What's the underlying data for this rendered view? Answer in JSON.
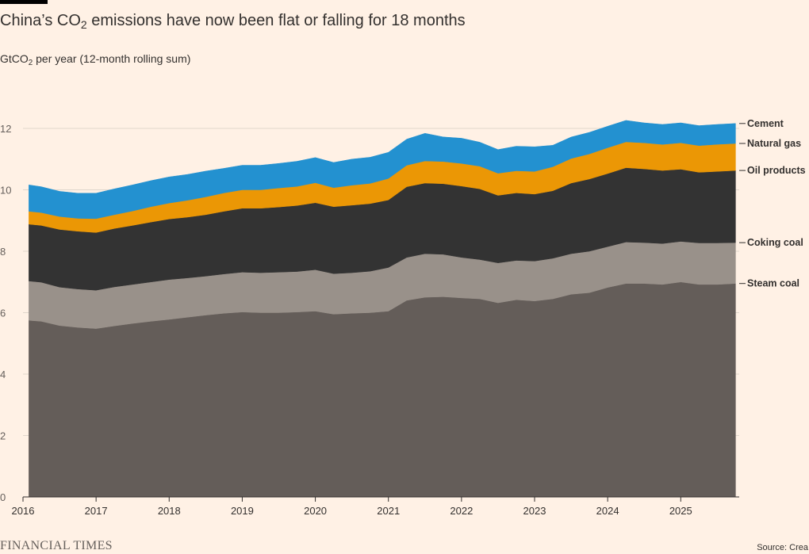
{
  "header": {
    "title_pre": "China’s CO",
    "title_sub": "2",
    "title_post": " emissions have now been flat or falling for 18 months",
    "subtitle_pre": "GtCO",
    "subtitle_sub": "2",
    "subtitle_post": " per year (12-month rolling sum)"
  },
  "footer": {
    "brand": "FINANCIAL TIMES",
    "source": "Source: Crea"
  },
  "colors": {
    "steam_coal": "#645d59",
    "coking_coal": "#99918a",
    "oil_products": "#333333",
    "natural_gas": "#eb9705",
    "cement": "#2391d0",
    "background": "#fff1e5",
    "grid": "#e0d6cc"
  },
  "chart_data": {
    "type": "area",
    "stacked": true,
    "title": "China’s CO₂ emissions have now been flat or falling for 18 months",
    "ylabel": "GtCO₂ per year (12-month rolling sum)",
    "xlabel": "",
    "xlim": [
      2016,
      2025.8
    ],
    "ylim": [
      0,
      12
    ],
    "yticks": [
      0,
      2,
      4,
      6,
      8,
      10,
      12
    ],
    "xticks": [
      2016,
      2017,
      2018,
      2019,
      2020,
      2021,
      2022,
      2023,
      2024,
      2025
    ],
    "grid": true,
    "legend": "direct labels at right end",
    "x": [
      2016.08,
      2016.25,
      2016.5,
      2016.75,
      2017.0,
      2017.25,
      2017.5,
      2017.75,
      2018.0,
      2018.25,
      2018.5,
      2018.75,
      2019.0,
      2019.25,
      2019.5,
      2019.75,
      2020.0,
      2020.25,
      2020.5,
      2020.75,
      2021.0,
      2021.25,
      2021.5,
      2021.75,
      2022.0,
      2022.25,
      2022.5,
      2022.75,
      2023.0,
      2023.25,
      2023.5,
      2023.75,
      2024.0,
      2024.25,
      2024.5,
      2024.75,
      2025.0,
      2025.25,
      2025.5,
      2025.75
    ],
    "series": [
      {
        "name": "Steam coal",
        "values": [
          5.75,
          5.72,
          5.58,
          5.52,
          5.48,
          5.57,
          5.65,
          5.72,
          5.78,
          5.85,
          5.92,
          5.98,
          6.02,
          6.0,
          6.0,
          6.02,
          6.05,
          5.95,
          5.98,
          6.0,
          6.05,
          6.4,
          6.5,
          6.52,
          6.48,
          6.45,
          6.32,
          6.42,
          6.38,
          6.45,
          6.6,
          6.65,
          6.82,
          6.95,
          6.95,
          6.92,
          7.0,
          6.92,
          6.92,
          6.95
        ]
      },
      {
        "name": "Coking coal",
        "values": [
          1.28,
          1.27,
          1.25,
          1.25,
          1.25,
          1.27,
          1.27,
          1.28,
          1.3,
          1.28,
          1.27,
          1.28,
          1.3,
          1.3,
          1.32,
          1.32,
          1.35,
          1.32,
          1.32,
          1.35,
          1.42,
          1.4,
          1.42,
          1.38,
          1.32,
          1.28,
          1.3,
          1.28,
          1.3,
          1.32,
          1.32,
          1.35,
          1.33,
          1.35,
          1.33,
          1.33,
          1.32,
          1.35,
          1.35,
          1.33
        ]
      },
      {
        "name": "Oil products",
        "values": [
          1.85,
          1.85,
          1.88,
          1.88,
          1.88,
          1.9,
          1.92,
          1.95,
          1.97,
          1.98,
          2.0,
          2.04,
          2.08,
          2.1,
          2.12,
          2.15,
          2.18,
          2.18,
          2.2,
          2.2,
          2.2,
          2.3,
          2.3,
          2.3,
          2.32,
          2.3,
          2.2,
          2.2,
          2.18,
          2.2,
          2.3,
          2.35,
          2.38,
          2.42,
          2.4,
          2.38,
          2.35,
          2.3,
          2.33,
          2.35
        ]
      },
      {
        "name": "Natural gas",
        "values": [
          0.42,
          0.42,
          0.42,
          0.42,
          0.45,
          0.45,
          0.47,
          0.5,
          0.52,
          0.55,
          0.58,
          0.6,
          0.6,
          0.6,
          0.62,
          0.62,
          0.65,
          0.62,
          0.65,
          0.66,
          0.7,
          0.7,
          0.72,
          0.72,
          0.74,
          0.74,
          0.72,
          0.72,
          0.74,
          0.78,
          0.8,
          0.82,
          0.84,
          0.84,
          0.85,
          0.85,
          0.86,
          0.87,
          0.88,
          0.88
        ]
      },
      {
        "name": "Cement",
        "values": [
          0.86,
          0.84,
          0.82,
          0.82,
          0.83,
          0.84,
          0.85,
          0.85,
          0.85,
          0.84,
          0.84,
          0.8,
          0.8,
          0.8,
          0.8,
          0.82,
          0.82,
          0.82,
          0.85,
          0.85,
          0.85,
          0.85,
          0.9,
          0.8,
          0.82,
          0.78,
          0.77,
          0.8,
          0.8,
          0.7,
          0.7,
          0.7,
          0.7,
          0.7,
          0.65,
          0.65,
          0.65,
          0.65,
          0.65,
          0.65
        ]
      }
    ]
  }
}
